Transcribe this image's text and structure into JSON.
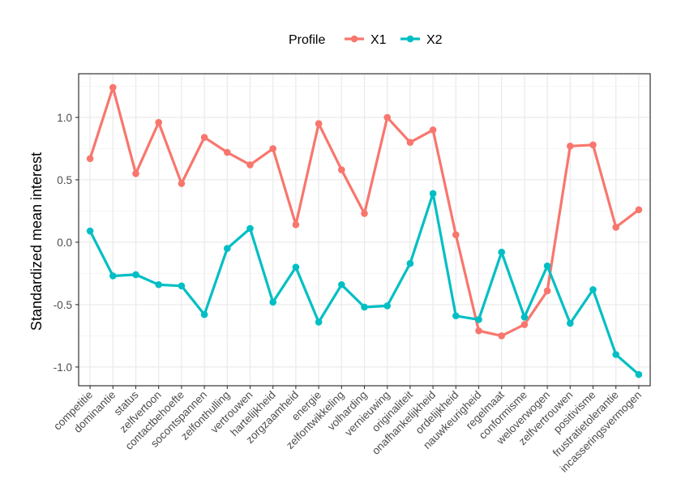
{
  "chart_data": {
    "type": "line",
    "ylabel": "Standardized mean interest",
    "xlabel": "",
    "ylim": [
      -1.15,
      1.35
    ],
    "yticks": [
      -1.0,
      -0.5,
      0.0,
      0.5,
      1.0
    ],
    "ytick_labels": [
      "-1.0",
      "-0.5",
      "0.0",
      "0.5",
      "1.0"
    ],
    "grid": true,
    "legend": {
      "title": "Profile",
      "position": "top"
    },
    "categories": [
      "competitie",
      "dominantie",
      "status",
      "zelfvertoon",
      "contactbehoefte",
      "socontspannen",
      "zelfonthulling",
      "vertrouwen",
      "hartelijkheid",
      "zorgzaamheid",
      "energie",
      "zelfontwikkeling",
      "volharding",
      "vernieuwing",
      "originaliteit",
      "onafhankelijkheid",
      "ordelijkheid",
      "nauwkeurigheid",
      "regelmaat",
      "conformisme",
      "weloverwogen",
      "zelfvertrouwen",
      "positivisme",
      "frustratietolerantie",
      "incasseringsvermogen"
    ],
    "series": [
      {
        "name": "X1",
        "color": "#F8766D",
        "values": [
          0.67,
          1.24,
          0.55,
          0.96,
          0.47,
          0.84,
          0.72,
          0.62,
          0.75,
          0.14,
          0.95,
          0.58,
          0.23,
          1.0,
          0.8,
          0.9,
          0.06,
          -0.71,
          -0.75,
          -0.66,
          -0.39,
          0.77,
          0.78,
          0.12,
          0.26
        ]
      },
      {
        "name": "X2",
        "color": "#00BFC4",
        "values": [
          0.09,
          -0.27,
          -0.26,
          -0.34,
          -0.35,
          -0.58,
          -0.05,
          0.11,
          -0.48,
          -0.2,
          -0.64,
          -0.34,
          -0.52,
          -0.51,
          -0.17,
          0.39,
          -0.59,
          -0.62,
          -0.08,
          -0.6,
          -0.19,
          -0.65,
          -0.38,
          -0.9,
          -1.06
        ]
      }
    ]
  }
}
